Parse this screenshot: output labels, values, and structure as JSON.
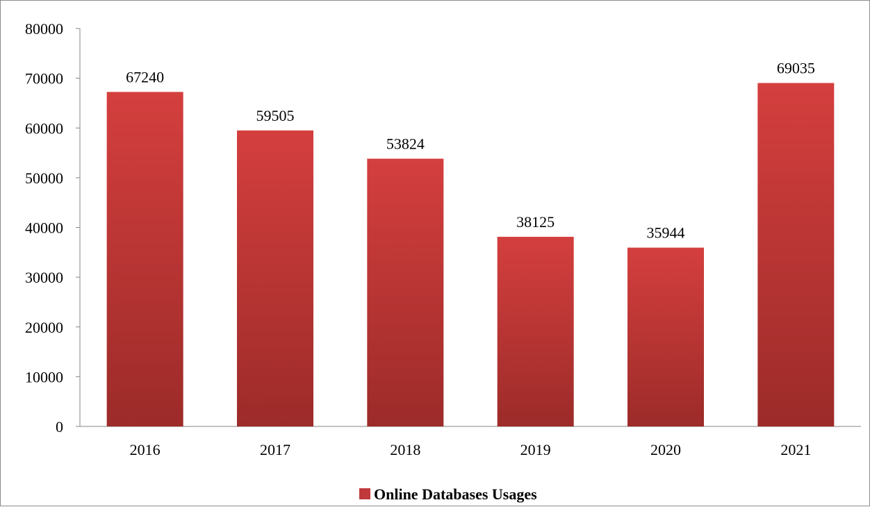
{
  "chart_data": {
    "type": "bar",
    "categories": [
      "2016",
      "2017",
      "2018",
      "2019",
      "2020",
      "2021"
    ],
    "series": [
      {
        "name": "Online Databases Usages",
        "values": [
          67240,
          59505,
          53824,
          38125,
          35944,
          69035
        ],
        "color": "#c0393b"
      }
    ],
    "ylim": [
      0,
      80000
    ],
    "yticks": [
      0,
      10000,
      20000,
      30000,
      40000,
      50000,
      60000,
      70000,
      80000
    ],
    "title": "",
    "xlabel": "",
    "ylabel": "",
    "grid": false,
    "legend": "bottom-center",
    "data_labels": true
  }
}
